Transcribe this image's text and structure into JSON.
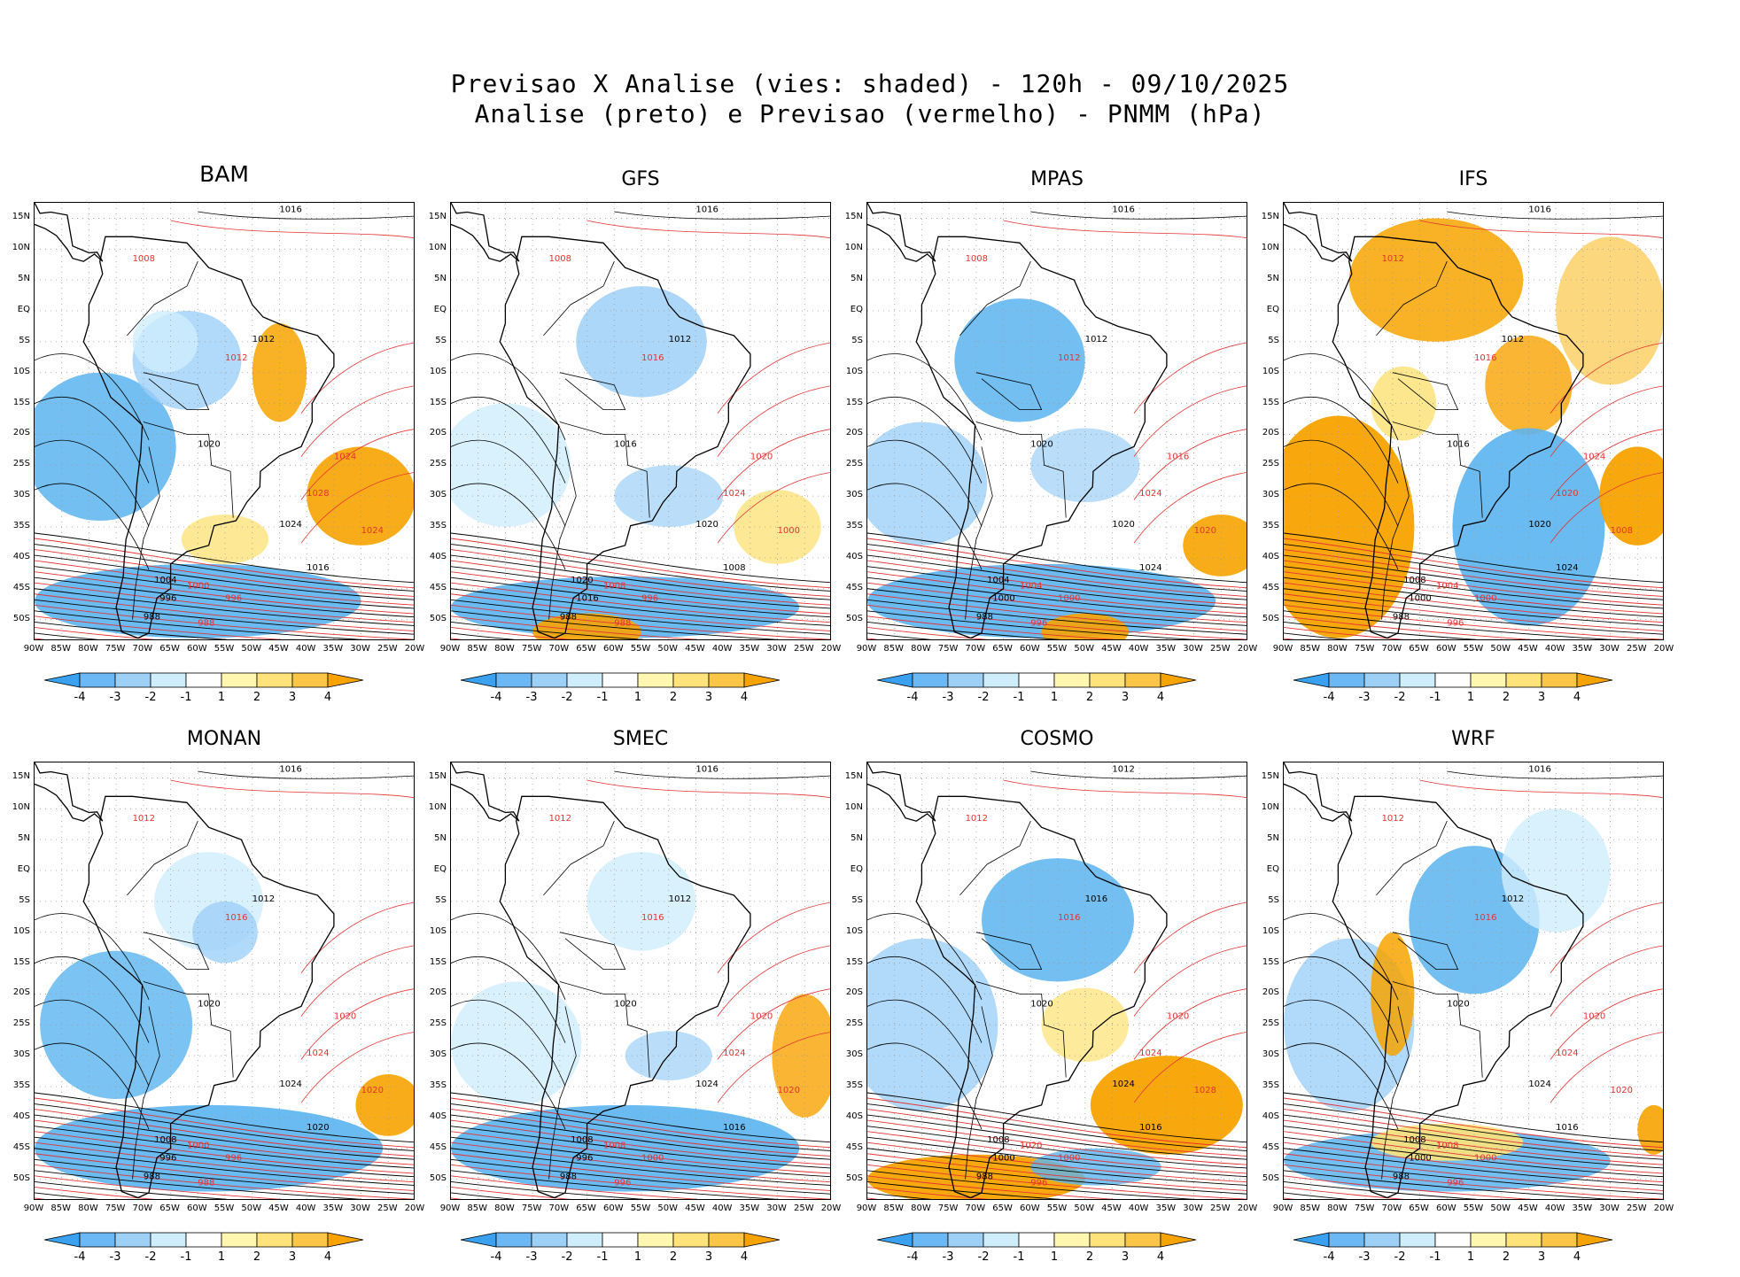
{
  "header": {
    "title_line1": "Previsao X Analise (vies: shaded) - 120h - 09/10/2025",
    "title_line2": "Analise (preto) e Previsao (vermelho) - PNMM (hPa)"
  },
  "axes": {
    "lat_labels": [
      "15N",
      "10N",
      "5N",
      "EQ",
      "5S",
      "10S",
      "15S",
      "20S",
      "25S",
      "30S",
      "35S",
      "40S",
      "45S",
      "50S"
    ],
    "lon_labels": [
      "90W",
      "85W",
      "80W",
      "75W",
      "70W",
      "65W",
      "60W",
      "55W",
      "50W",
      "45W",
      "40W",
      "35W",
      "30W",
      "25W",
      "20W"
    ]
  },
  "colorbar": {
    "labels": [
      "-4",
      "-3",
      "-2",
      "-1",
      "1",
      "2",
      "3",
      "4"
    ],
    "colors": [
      "#3aa0f0",
      "#6bb8f4",
      "#9dd0f7",
      "#cfeefc",
      "#ffffff",
      "#fff6b0",
      "#fde37a",
      "#fbc647",
      "#f8a300"
    ]
  },
  "colors": {
    "analysis_contour": "#000000",
    "forecast_contour": "#e63232",
    "bias_negative": "#5ab4f0",
    "bias_positive": "#f8a300"
  },
  "panels": [
    {
      "model": "BAM",
      "contour_labels": {
        "analysis": [
          "1016",
          "1012",
          "1020",
          "1024",
          "1016",
          "1004",
          "996",
          "988"
        ],
        "forecast": [
          "1008",
          "1012",
          "1024",
          "1028",
          "1024",
          "1000",
          "996",
          "988"
        ]
      }
    },
    {
      "model": "GFS",
      "contour_labels": {
        "analysis": [
          "1016",
          "1012",
          "1016",
          "1020",
          "1008",
          "1020",
          "1016",
          "988"
        ],
        "forecast": [
          "1008",
          "1016",
          "1020",
          "1024",
          "1000",
          "1008",
          "996",
          "988"
        ]
      }
    },
    {
      "model": "MPAS",
      "contour_labels": {
        "analysis": [
          "1016",
          "1012",
          "1020",
          "1020",
          "1024",
          "1004",
          "1000",
          "988"
        ],
        "forecast": [
          "1008",
          "1012",
          "1016",
          "1024",
          "1020",
          "1004",
          "1000",
          "996"
        ]
      }
    },
    {
      "model": "IFS",
      "contour_labels": {
        "analysis": [
          "1016",
          "1012",
          "1016",
          "1020",
          "1024",
          "1008",
          "1000",
          "988"
        ],
        "forecast": [
          "1012",
          "1016",
          "1024",
          "1020",
          "1008",
          "1004",
          "1000",
          "996"
        ]
      }
    },
    {
      "model": "MONAN",
      "contour_labels": {
        "analysis": [
          "1016",
          "1012",
          "1020",
          "1024",
          "1020",
          "1008",
          "996",
          "988"
        ],
        "forecast": [
          "1012",
          "1016",
          "1020",
          "1024",
          "1020",
          "1000",
          "996",
          "988"
        ]
      }
    },
    {
      "model": "SMEC",
      "contour_labels": {
        "analysis": [
          "1016",
          "1012",
          "1020",
          "1024",
          "1016",
          "1008",
          "996",
          "988"
        ],
        "forecast": [
          "1012",
          "1016",
          "1020",
          "1024",
          "1020",
          "1008",
          "1000",
          "996"
        ]
      }
    },
    {
      "model": "COSMO",
      "contour_labels": {
        "analysis": [
          "1012",
          "1016",
          "1020",
          "1024",
          "1016",
          "1008",
          "1000",
          "988"
        ],
        "forecast": [
          "1012",
          "1016",
          "1020",
          "1024",
          "1028",
          "1020",
          "1000",
          "996"
        ]
      }
    },
    {
      "model": "WRF",
      "contour_labels": {
        "analysis": [
          "1016",
          "1012",
          "1020",
          "1024",
          "1016",
          "1008",
          "1000",
          "988"
        ],
        "forecast": [
          "1012",
          "1016",
          "1020",
          "1024",
          "1020",
          "1008",
          "1000",
          "996"
        ]
      }
    }
  ]
}
